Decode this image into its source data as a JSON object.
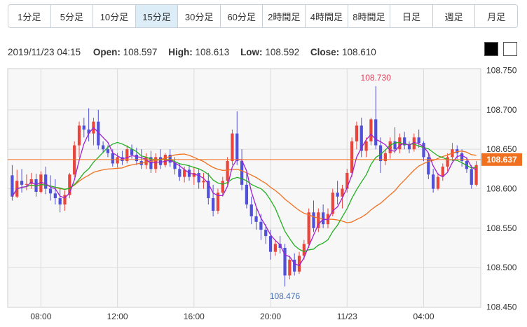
{
  "tabs": [
    {
      "label": "1分足",
      "active": false
    },
    {
      "label": "5分足",
      "active": false
    },
    {
      "label": "10分足",
      "active": false
    },
    {
      "label": "15分足",
      "active": true
    },
    {
      "label": "30分足",
      "active": false
    },
    {
      "label": "60分足",
      "active": false
    },
    {
      "label": "2時間足",
      "active": false
    },
    {
      "label": "4時間足",
      "active": false
    },
    {
      "label": "8時間足",
      "active": false
    },
    {
      "label": "日足",
      "active": false
    },
    {
      "label": "週足",
      "active": false
    },
    {
      "label": "月足",
      "active": false
    }
  ],
  "ohlc": {
    "timestamp": "2019/11/23 04:15",
    "open_label": "Open:",
    "open": "108.597",
    "high_label": "High:",
    "high": "108.613",
    "low_label": "Low:",
    "low": "108.592",
    "close_label": "Close:",
    "close": "108.610"
  },
  "theme": {
    "dark_label": "dark theme",
    "light_label": "light theme"
  },
  "chart_data": {
    "type": "candlestick",
    "timeframe": "15分足",
    "ylim": [
      108.45,
      108.75
    ],
    "yticks": [
      "108.750",
      "108.700",
      "108.650",
      "108.600",
      "108.550",
      "108.500",
      "108.450"
    ],
    "xticks": [
      "08:00",
      "12:00",
      "16:00",
      "20:00",
      "11/23",
      "04:00"
    ],
    "current_price": "108.637",
    "current_price_value": 108.637,
    "high_annotation": {
      "label": "108.730",
      "value": 108.73,
      "color": "#e0405a"
    },
    "low_annotation": {
      "label": "108.476",
      "value": 108.476,
      "color": "#4a6fb0"
    },
    "colors": {
      "up": "#e8453c",
      "down": "#5050d8",
      "ma_short": "#a020d0",
      "ma_mid": "#20b020",
      "ma_long": "#f07020",
      "current": "#f07020"
    },
    "candles": [
      [
        108.617,
        108.63,
        108.585,
        108.59
      ],
      [
        108.59,
        108.624,
        108.588,
        108.61
      ],
      [
        108.61,
        108.625,
        108.595,
        108.605
      ],
      [
        108.605,
        108.618,
        108.598,
        108.606
      ],
      [
        108.606,
        108.62,
        108.6,
        108.612
      ],
      [
        108.612,
        108.619,
        108.59,
        108.596
      ],
      [
        108.596,
        108.622,
        108.594,
        108.618
      ],
      [
        108.618,
        108.628,
        108.593,
        108.6
      ],
      [
        108.6,
        108.617,
        108.585,
        108.594
      ],
      [
        108.594,
        108.612,
        108.58,
        108.588
      ],
      [
        108.588,
        108.6,
        108.57,
        108.58
      ],
      [
        108.58,
        108.598,
        108.572,
        108.592
      ],
      [
        108.592,
        108.62,
        108.588,
        108.618
      ],
      [
        108.618,
        108.66,
        108.615,
        108.655
      ],
      [
        108.655,
        108.685,
        108.64,
        108.68
      ],
      [
        108.68,
        108.69,
        108.665,
        108.675
      ],
      [
        108.675,
        108.702,
        108.66,
        108.67
      ],
      [
        108.67,
        108.69,
        108.655,
        108.685
      ],
      [
        108.685,
        108.7,
        108.65,
        108.655
      ],
      [
        108.655,
        108.66,
        108.645,
        108.65
      ],
      [
        108.65,
        108.655,
        108.64,
        108.645
      ],
      [
        108.645,
        108.65,
        108.628,
        108.632
      ],
      [
        108.632,
        108.645,
        108.627,
        108.64
      ],
      [
        108.64,
        108.648,
        108.63,
        108.635
      ],
      [
        108.635,
        108.655,
        108.632,
        108.65
      ],
      [
        108.65,
        108.656,
        108.638,
        108.643
      ],
      [
        108.643,
        108.652,
        108.63,
        108.635
      ],
      [
        108.635,
        108.65,
        108.625,
        108.63
      ],
      [
        108.63,
        108.645,
        108.625,
        108.64
      ],
      [
        108.64,
        108.648,
        108.62,
        108.625
      ],
      [
        108.625,
        108.645,
        108.62,
        108.64
      ],
      [
        108.64,
        108.65,
        108.625,
        108.63
      ],
      [
        108.63,
        108.645,
        108.627,
        108.643
      ],
      [
        108.643,
        108.65,
        108.628,
        108.633
      ],
      [
        108.633,
        108.64,
        108.618,
        108.625
      ],
      [
        108.625,
        108.632,
        108.61,
        108.615
      ],
      [
        108.615,
        108.628,
        108.608,
        108.624
      ],
      [
        108.624,
        108.63,
        108.61,
        108.615
      ],
      [
        108.615,
        108.628,
        108.605,
        108.62
      ],
      [
        108.62,
        108.625,
        108.6,
        108.608
      ],
      [
        108.608,
        108.62,
        108.6,
        108.61
      ],
      [
        108.61,
        108.62,
        108.58,
        108.588
      ],
      [
        108.588,
        108.605,
        108.565,
        108.572
      ],
      [
        108.572,
        108.6,
        108.568,
        108.595
      ],
      [
        108.595,
        108.615,
        108.59,
        108.61
      ],
      [
        108.61,
        108.64,
        108.605,
        108.635
      ],
      [
        108.635,
        108.675,
        108.63,
        108.67
      ],
      [
        108.67,
        108.698,
        108.63,
        108.635
      ],
      [
        108.635,
        108.65,
        108.598,
        108.605
      ],
      [
        108.605,
        108.62,
        108.575,
        108.58
      ],
      [
        108.58,
        108.59,
        108.555,
        108.565
      ],
      [
        108.565,
        108.575,
        108.548,
        108.558
      ],
      [
        108.558,
        108.568,
        108.535,
        108.548
      ],
      [
        108.548,
        108.555,
        108.53,
        108.54
      ],
      [
        108.54,
        108.548,
        108.51,
        108.52
      ],
      [
        108.52,
        108.535,
        108.515,
        108.53
      ],
      [
        108.53,
        108.54,
        108.518,
        108.525
      ],
      [
        108.525,
        108.53,
        108.476,
        108.49
      ],
      [
        108.49,
        108.515,
        108.485,
        108.51
      ],
      [
        108.51,
        108.518,
        108.49,
        108.495
      ],
      [
        108.495,
        108.52,
        108.492,
        108.515
      ],
      [
        108.515,
        108.535,
        108.51,
        108.53
      ],
      [
        108.53,
        108.575,
        108.525,
        108.57
      ],
      [
        108.57,
        108.585,
        108.545,
        108.55
      ],
      [
        108.55,
        108.575,
        108.545,
        108.57
      ],
      [
        108.57,
        108.58,
        108.55,
        108.555
      ],
      [
        108.555,
        108.575,
        108.55,
        108.568
      ],
      [
        108.568,
        108.6,
        108.565,
        108.595
      ],
      [
        108.595,
        108.61,
        108.58,
        108.59
      ],
      [
        108.59,
        108.605,
        108.575,
        108.6
      ],
      [
        108.6,
        108.625,
        108.595,
        108.62
      ],
      [
        108.62,
        108.665,
        108.615,
        108.66
      ],
      [
        108.66,
        108.685,
        108.65,
        108.68
      ],
      [
        108.68,
        108.69,
        108.64,
        108.648
      ],
      [
        108.648,
        108.665,
        108.64,
        108.66
      ],
      [
        108.66,
        108.69,
        108.655,
        108.688
      ],
      [
        108.688,
        108.73,
        108.65,
        108.655
      ],
      [
        108.655,
        108.665,
        108.62,
        108.635
      ],
      [
        108.635,
        108.65,
        108.63,
        108.645
      ],
      [
        108.645,
        108.665,
        108.638,
        108.66
      ],
      [
        108.66,
        108.678,
        108.645,
        108.65
      ],
      [
        108.65,
        108.67,
        108.645,
        108.665
      ],
      [
        108.665,
        108.672,
        108.65,
        108.655
      ],
      [
        108.655,
        108.66,
        108.645,
        108.65
      ],
      [
        108.65,
        108.67,
        108.647,
        108.665
      ],
      [
        108.665,
        108.675,
        108.652,
        108.658
      ],
      [
        108.658,
        108.66,
        108.635,
        108.64
      ],
      [
        108.64,
        108.645,
        108.612,
        108.618
      ],
      [
        108.618,
        108.625,
        108.595,
        108.6
      ],
      [
        108.6,
        108.62,
        108.598,
        108.615
      ],
      [
        108.615,
        108.632,
        108.61,
        108.628
      ],
      [
        108.628,
        108.645,
        108.622,
        108.64
      ],
      [
        108.64,
        108.658,
        108.635,
        108.65
      ],
      [
        108.65,
        108.655,
        108.638,
        108.645
      ],
      [
        108.645,
        108.65,
        108.628,
        108.635
      ],
      [
        108.635,
        108.64,
        108.62,
        108.625
      ],
      [
        108.625,
        108.63,
        108.6,
        108.605
      ],
      [
        108.605,
        108.635,
        108.603,
        108.63
      ]
    ]
  }
}
